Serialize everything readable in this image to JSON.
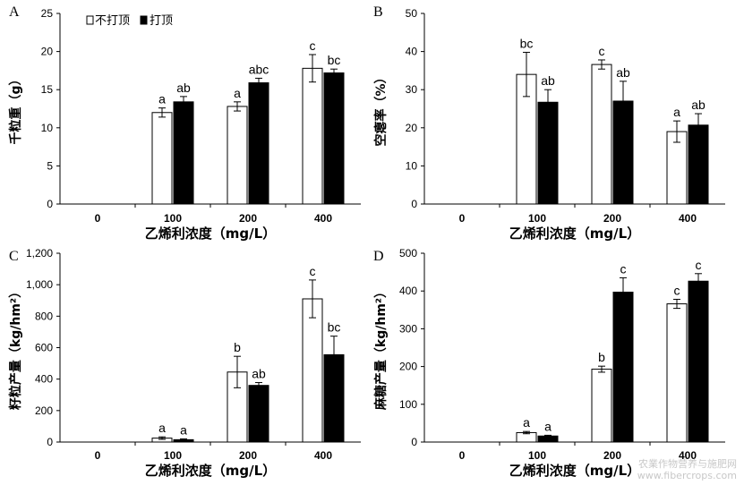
{
  "legend": {
    "items": [
      "不打顶",
      "打顶"
    ]
  },
  "watermark": {
    "line1": "农業作物营养与施肥网",
    "line2": "www.fibercrops.com"
  },
  "chart_data": [
    {
      "panel": "A",
      "type": "bar",
      "ylabel": "千粒重（g）",
      "xlabel": "乙烯利浓度（mg/L）",
      "categories": [
        "0",
        "100",
        "200",
        "400"
      ],
      "ylim": [
        0,
        25
      ],
      "yticks": [
        "0",
        "5",
        "10",
        "15",
        "20",
        "25"
      ],
      "series": [
        {
          "name": "不打顶",
          "fill": "#ffffff",
          "values": [
            null,
            12.0,
            12.8,
            17.8
          ],
          "errors": [
            null,
            0.6,
            0.6,
            1.8
          ],
          "letters": [
            "",
            "a",
            "a",
            "c"
          ]
        },
        {
          "name": "打顶",
          "fill": "#000000",
          "values": [
            null,
            13.4,
            15.9,
            17.2
          ],
          "errors": [
            null,
            0.7,
            0.6,
            0.5
          ],
          "letters": [
            "",
            "ab",
            "abc",
            "bc"
          ]
        }
      ]
    },
    {
      "panel": "B",
      "type": "bar",
      "ylabel": "空瘪率（%）",
      "xlabel": "乙烯利浓度（mg/L）",
      "categories": [
        "0",
        "100",
        "200",
        "400"
      ],
      "ylim": [
        0,
        50
      ],
      "yticks": [
        "0",
        "10",
        "20",
        "30",
        "40",
        "50"
      ],
      "series": [
        {
          "name": "不打顶",
          "fill": "#ffffff",
          "values": [
            null,
            34.0,
            36.6,
            19.0
          ],
          "errors": [
            null,
            5.8,
            1.2,
            2.8
          ],
          "letters": [
            "",
            "bc",
            "c",
            "a"
          ]
        },
        {
          "name": "打顶",
          "fill": "#000000",
          "values": [
            null,
            26.7,
            27.0,
            20.7
          ],
          "errors": [
            null,
            3.3,
            5.2,
            3.0
          ],
          "letters": [
            "",
            "ab",
            "ab",
            "ab"
          ]
        }
      ]
    },
    {
      "panel": "C",
      "type": "bar",
      "ylabel": "籽粒产量（kg/hm²）",
      "xlabel": "乙烯利浓度（mg/L）",
      "categories": [
        "0",
        "100",
        "200",
        "400"
      ],
      "ylim": [
        0,
        1200
      ],
      "yticks": [
        "0",
        "200",
        "400",
        "600",
        "800",
        "1,000",
        "1,200"
      ],
      "series": [
        {
          "name": "不打顶",
          "fill": "#ffffff",
          "values": [
            null,
            25,
            445,
            910
          ],
          "errors": [
            null,
            8,
            100,
            120
          ],
          "letters": [
            "",
            "a",
            "b",
            "c"
          ]
        },
        {
          "name": "打顶",
          "fill": "#000000",
          "values": [
            null,
            15,
            360,
            555
          ],
          "errors": [
            null,
            5,
            18,
            118
          ],
          "letters": [
            "",
            "a",
            "ab",
            "bc"
          ]
        }
      ]
    },
    {
      "panel": "D",
      "type": "bar",
      "ylabel": "麻糖产量（kg/hm²）",
      "xlabel": "乙烯利浓度（mg/L）",
      "categories": [
        "0",
        "100",
        "200",
        "400"
      ],
      "ylim": [
        0,
        500
      ],
      "yticks": [
        "0",
        "100",
        "200",
        "300",
        "400",
        "500"
      ],
      "series": [
        {
          "name": "不打顶",
          "fill": "#ffffff",
          "values": [
            null,
            25,
            193,
            366
          ],
          "errors": [
            null,
            3,
            8,
            12
          ],
          "letters": [
            "",
            "a",
            "b",
            "c"
          ]
        },
        {
          "name": "打顶",
          "fill": "#000000",
          "values": [
            null,
            16,
            397,
            426
          ],
          "errors": [
            null,
            2,
            38,
            20
          ],
          "letters": [
            "",
            "a",
            "c",
            "c"
          ]
        }
      ]
    }
  ]
}
